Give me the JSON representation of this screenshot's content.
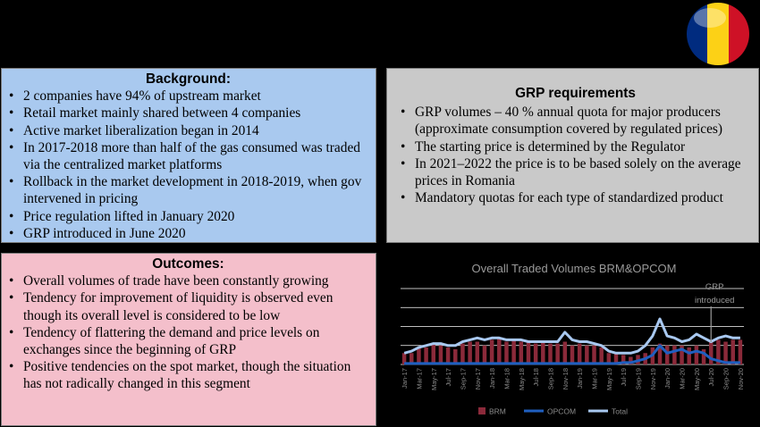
{
  "flag": {
    "colors": [
      "#002B7F",
      "#FCD116",
      "#CE1126"
    ]
  },
  "background": {
    "title": "Background:",
    "items": [
      "2 companies have 94% of upstream market",
      "Retail market mainly shared between 4 companies",
      "Active market liberalization began in 2014",
      "In 2017-2018 more than half of the gas consumed was traded via the centralized market platforms",
      "Rollback in the market development in 2018-2019, when gov intervened in pricing",
      "Price regulation lifted in January 2020",
      "GRP introduced in June 2020"
    ]
  },
  "grp": {
    "title": "GRP requirements",
    "items": [
      "GRP volumes – 40 % annual quota for major producers (approximate consumption covered by regulated prices)",
      "The starting price is determined by the Regulator",
      "In 2021–2022 the price is to be based solely on the average prices in Romania",
      "Mandatory quotas for each type of standardized product"
    ]
  },
  "outcomes": {
    "title": "Outcomes:",
    "items": [
      "Overall volumes of trade have been constantly growing",
      "Tendency for improvement of liquidity is observed even though its overall level is considered to be low",
      "Tendency of flattering the demand and price levels on exchanges since the beginning of GRP",
      "Positive tendencies on the spot market, though the situation has not radically changed in this segment"
    ]
  },
  "chart_data": {
    "type": "bar",
    "title": "Overall Traded Volumes BRM&OPCOM",
    "annotation": "GRP introduced",
    "annotation_index": 42,
    "ylim": [
      0,
      4
    ],
    "grid": true,
    "legend_position": "bottom",
    "categories": [
      "Jan-17",
      "Feb-17",
      "Mar-17",
      "Apr-17",
      "May-17",
      "Jun-17",
      "Jul-17",
      "Aug-17",
      "Sep-17",
      "Oct-17",
      "Nov-17",
      "Dec-17",
      "Jan-18",
      "Feb-18",
      "Mar-18",
      "Apr-18",
      "May-18",
      "Jun-18",
      "Jul-18",
      "Aug-18",
      "Sep-18",
      "Oct-18",
      "Nov-18",
      "Dec-18",
      "Jan-19",
      "Feb-19",
      "Mar-19",
      "Apr-19",
      "May-19",
      "Jun-19",
      "Jul-19",
      "Aug-19",
      "Sep-19",
      "Oct-19",
      "Nov-19",
      "Dec-19",
      "Jan-20",
      "Feb-20",
      "Mar-20",
      "Apr-20",
      "May-20",
      "Jun-20",
      "Jul-20",
      "Aug-20",
      "Sep-20",
      "Oct-20",
      "Nov-20"
    ],
    "tick_labels": [
      "Jan-17",
      "Mar-17",
      "May-17",
      "Jul-17",
      "Sep-17",
      "Nov-17",
      "Jan-18",
      "Mar-18",
      "May-18",
      "Jul-18",
      "Sep-18",
      "Nov-18",
      "Jan-19",
      "Mar-19",
      "May-19",
      "Jul-19",
      "Sep-19",
      "Nov-19",
      "Jan-20",
      "Mar-20",
      "May-20",
      "Jul-20",
      "Sep-20",
      "Nov-20"
    ],
    "series": [
      {
        "name": "BRM",
        "type": "bar",
        "color": "#8b2a3a",
        "values": [
          0.6,
          0.6,
          0.9,
          0.9,
          1.1,
          1.0,
          0.9,
          0.8,
          1.1,
          1.2,
          1.2,
          1.0,
          1.3,
          1.4,
          1.2,
          1.3,
          1.2,
          1.2,
          1.1,
          1.2,
          1.1,
          1.1,
          1.2,
          1.0,
          1.1,
          1.0,
          1.0,
          0.9,
          0.6,
          0.6,
          0.5,
          0.4,
          0.5,
          0.6,
          0.9,
          1.1,
          1.0,
          1.0,
          1.0,
          0.9,
          1.0,
          0.8,
          1.2,
          1.3,
          1.2,
          1.3,
          1.3
        ]
      },
      {
        "name": "OPCOM",
        "type": "line",
        "color": "#1f5fc0",
        "values": [
          0.05,
          0.05,
          0.05,
          0.05,
          0.05,
          0.05,
          0.05,
          0.05,
          0.05,
          0.05,
          0.05,
          0.05,
          0.05,
          0.05,
          0.05,
          0.05,
          0.05,
          0.05,
          0.05,
          0.05,
          0.05,
          0.05,
          0.05,
          0.05,
          0.05,
          0.05,
          0.05,
          0.05,
          0.05,
          0.05,
          0.1,
          0.1,
          0.2,
          0.3,
          0.5,
          1.0,
          0.6,
          0.7,
          0.8,
          0.6,
          0.7,
          0.6,
          0.3,
          0.2,
          0.1,
          0.1,
          0.1
        ]
      },
      {
        "name": "Total",
        "type": "line",
        "color": "#a8c8f0",
        "values": [
          0.6,
          0.7,
          0.9,
          1.0,
          1.1,
          1.1,
          1.0,
          1.0,
          1.2,
          1.3,
          1.4,
          1.3,
          1.4,
          1.4,
          1.3,
          1.3,
          1.3,
          1.2,
          1.2,
          1.2,
          1.2,
          1.2,
          1.7,
          1.3,
          1.2,
          1.2,
          1.1,
          1.0,
          0.7,
          0.6,
          0.6,
          0.6,
          0.7,
          1.0,
          1.5,
          2.4,
          1.5,
          1.4,
          1.2,
          1.3,
          1.6,
          1.4,
          1.2,
          1.4,
          1.5,
          1.4,
          1.4
        ]
      }
    ]
  }
}
